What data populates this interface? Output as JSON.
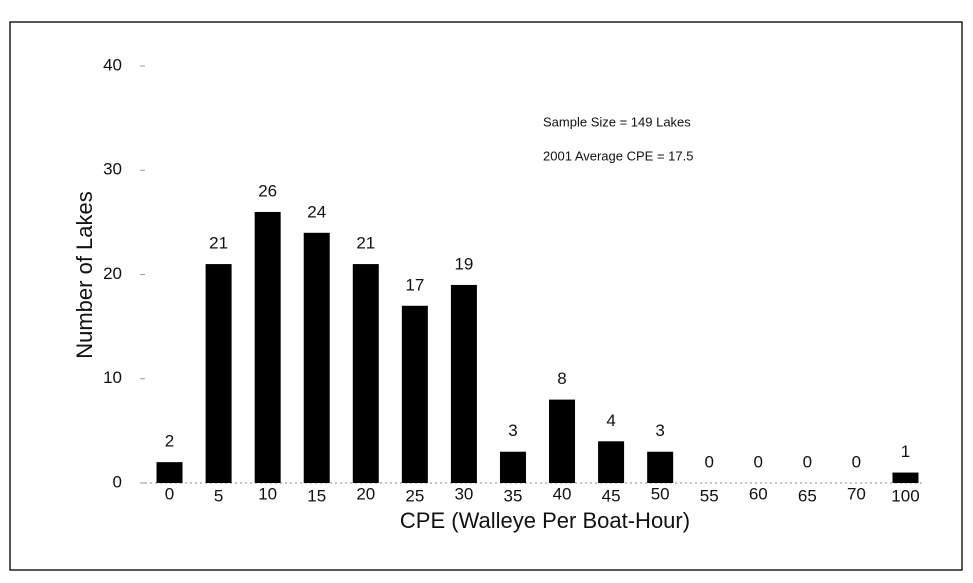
{
  "chart_data": {
    "type": "bar",
    "x_label": "CPE (Walleye Per Boat-Hour)",
    "y_label": "Number of Lakes",
    "annotations": [
      "Sample Size = 149 Lakes",
      "2001 Average CPE = 17.5"
    ],
    "categories": [
      "0",
      "5",
      "10",
      "15",
      "20",
      "25",
      "30",
      "35",
      "40",
      "45",
      "50",
      "55",
      "60",
      "65",
      "70",
      "100"
    ],
    "values": [
      2,
      21,
      26,
      24,
      21,
      17,
      19,
      3,
      8,
      4,
      3,
      0,
      0,
      0,
      0,
      1
    ],
    "color": "#000000",
    "ylim": [
      0,
      40
    ],
    "yticks": [
      0,
      10,
      20,
      30,
      40
    ],
    "grid": false
  }
}
